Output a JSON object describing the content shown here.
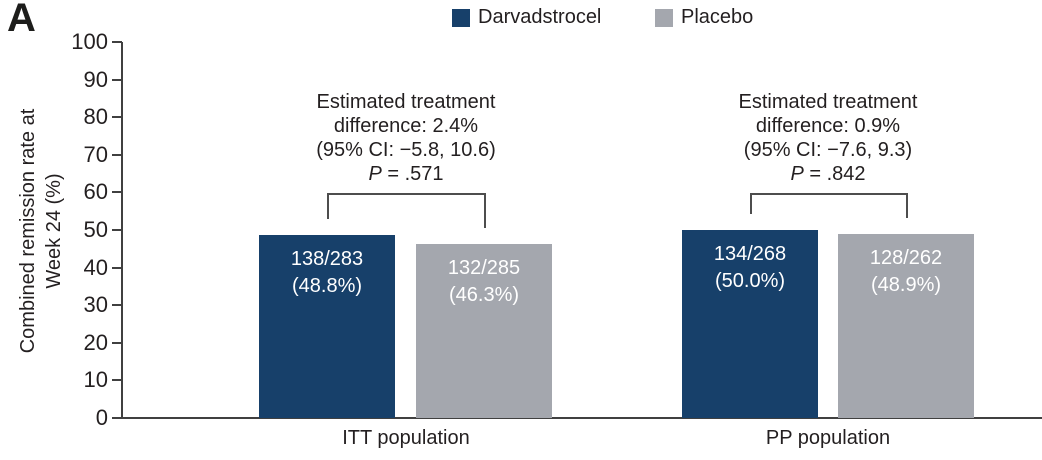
{
  "panel_label": "A",
  "legend": {
    "items": [
      {
        "label": "Darvadstrocel",
        "color": "#17406a"
      },
      {
        "label": "Placebo",
        "color": "#a4a7ae"
      }
    ]
  },
  "ylabel_lines": [
    "Combined remission rate at",
    "Week 24 (%)"
  ],
  "chart_data": {
    "type": "bar",
    "title": "",
    "xlabel": "",
    "ylabel": "Combined remission rate at Week 24 (%)",
    "ylim": [
      0,
      100
    ],
    "yticks": [
      0,
      10,
      20,
      30,
      40,
      50,
      60,
      70,
      80,
      90,
      100
    ],
    "grid": false,
    "legend_position": "top-center",
    "categories": [
      "ITT population",
      "PP population"
    ],
    "series": [
      {
        "name": "Darvadstrocel",
        "color": "#17406a",
        "values": [
          48.8,
          50.0
        ]
      },
      {
        "name": "Placebo",
        "color": "#a4a7ae",
        "values": [
          46.3,
          48.9
        ]
      }
    ],
    "bars": [
      {
        "group_index": 0,
        "series_index": 0,
        "fraction": "138/283",
        "percent": "(48.8%)",
        "value": 48.8
      },
      {
        "group_index": 0,
        "series_index": 1,
        "fraction": "132/285",
        "percent": "(46.3%)",
        "value": 46.3
      },
      {
        "group_index": 1,
        "series_index": 0,
        "fraction": "134/268",
        "percent": "(50.0%)",
        "value": 50.0
      },
      {
        "group_index": 1,
        "series_index": 1,
        "fraction": "128/262",
        "percent": "(48.9%)",
        "value": 48.9
      }
    ],
    "annotations": [
      {
        "lines": [
          "Estimated treatment",
          "difference: 2.4%",
          "(95% CI: −5.8, 10.6)"
        ],
        "p_symbol": "P",
        "p_value": "= .571"
      },
      {
        "lines": [
          "Estimated treatment",
          "difference: 0.9%",
          "(95% CI: −7.6, 9.3)"
        ],
        "p_symbol": "P",
        "p_value": "= .842"
      }
    ]
  }
}
